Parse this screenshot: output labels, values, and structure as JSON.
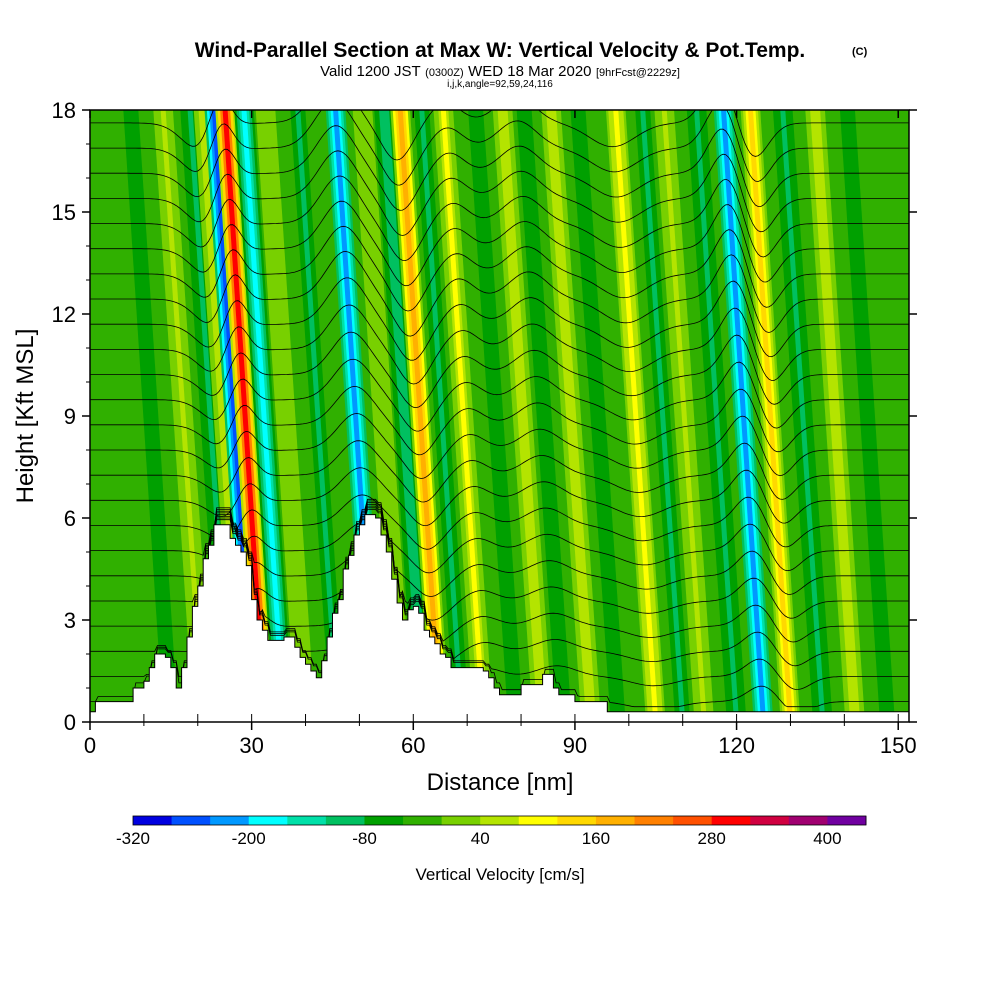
{
  "chart_data": {
    "type": "heatmap",
    "title": "Wind-Parallel Section at Max W: Vertical Velocity & Pot.Temp.",
    "title_mark": "(C)",
    "subtitle_parts": [
      "Valid 1200 JST",
      "(0300Z)",
      "WED 18 Mar 2020",
      "[9hrFcst@2229z]"
    ],
    "subtitle2": "i,j,k,angle=92,59,24,116",
    "xlabel": "Distance [nm]",
    "ylabel": "Height [Kft MSL]",
    "xlim": [
      0,
      152
    ],
    "ylim": [
      0,
      18
    ],
    "x_ticks": [
      0,
      30,
      60,
      90,
      120,
      150
    ],
    "y_ticks": [
      0,
      3,
      6,
      9,
      12,
      15,
      18
    ],
    "colorbar": {
      "title": "Vertical Velocity [cm/s]",
      "labels": [
        "-320",
        "-200",
        "-80",
        "40",
        "160",
        "280",
        "400"
      ],
      "colors": [
        "#0000e0",
        "#0050ff",
        "#0098ff",
        "#00ffff",
        "#00e0a8",
        "#00c060",
        "#00a000",
        "#30b000",
        "#78d000",
        "#b4e400",
        "#ffff00",
        "#ffd800",
        "#ffb000",
        "#ff8000",
        "#ff5000",
        "#ff0000",
        "#d00040",
        "#a00070",
        "#7000a0"
      ]
    },
    "band_thresholds": [
      -340,
      -280,
      -220,
      -160,
      -100,
      -40,
      -5,
      20,
      60,
      100,
      140,
      180,
      220,
      260,
      300,
      340,
      380,
      420
    ],
    "background_w": 8,
    "columns": [
      {
        "x": 15,
        "w": -20
      },
      {
        "x": 21,
        "w": 70
      },
      {
        "x": 26,
        "w": -50
      },
      {
        "x": 28.5,
        "w": 90
      },
      {
        "x": 30.5,
        "w": -330
      },
      {
        "x": 32.5,
        "w": 340
      },
      {
        "x": 36,
        "w": -180
      },
      {
        "x": 40,
        "w": 60
      },
      {
        "x": 46,
        "w": -40
      },
      {
        "x": 53,
        "w": -250
      },
      {
        "x": 58,
        "w": 60
      },
      {
        "x": 62,
        "w": -60
      },
      {
        "x": 65,
        "w": 200
      },
      {
        "x": 69,
        "w": -40
      },
      {
        "x": 73,
        "w": 110
      },
      {
        "x": 79,
        "w": -30
      },
      {
        "x": 84,
        "w": 80
      },
      {
        "x": 88,
        "w": -30
      },
      {
        "x": 93,
        "w": 100
      },
      {
        "x": 98,
        "w": -20
      },
      {
        "x": 105,
        "w": 120
      },
      {
        "x": 110,
        "w": -40
      },
      {
        "x": 114,
        "w": 70
      },
      {
        "x": 120,
        "w": -50
      },
      {
        "x": 125,
        "w": -220
      },
      {
        "x": 130,
        "w": 180
      },
      {
        "x": 136,
        "w": -50
      },
      {
        "x": 142,
        "w": 90
      },
      {
        "x": 148,
        "w": -30
      }
    ],
    "terrain_kft": [
      [
        0,
        0.3
      ],
      [
        1,
        0.6
      ],
      [
        7,
        0.6
      ],
      [
        8,
        1.0
      ],
      [
        10,
        1.2
      ],
      [
        11,
        1.6
      ],
      [
        12,
        2.0
      ],
      [
        14,
        1.9
      ],
      [
        15,
        1.6
      ],
      [
        16,
        1.0
      ],
      [
        17,
        1.6
      ],
      [
        18,
        2.5
      ],
      [
        19,
        3.4
      ],
      [
        20,
        4.0
      ],
      [
        21,
        4.8
      ],
      [
        22,
        5.2
      ],
      [
        23,
        5.8
      ],
      [
        25,
        5.8
      ],
      [
        26,
        5.4
      ],
      [
        27,
        5.2
      ],
      [
        28,
        5.0
      ],
      [
        29,
        4.6
      ],
      [
        30,
        3.6
      ],
      [
        31,
        3.0
      ],
      [
        32,
        2.7
      ],
      [
        33,
        2.4
      ],
      [
        35,
        2.4
      ],
      [
        36,
        2.5
      ],
      [
        38,
        2.2
      ],
      [
        39,
        1.9
      ],
      [
        40,
        1.7
      ],
      [
        41,
        1.5
      ],
      [
        42,
        1.3
      ],
      [
        43,
        1.8
      ],
      [
        44,
        2.5
      ],
      [
        45,
        3.2
      ],
      [
        46,
        3.6
      ],
      [
        47,
        4.5
      ],
      [
        48,
        4.9
      ],
      [
        49,
        5.5
      ],
      [
        50,
        5.8
      ],
      [
        51,
        6.1
      ],
      [
        53,
        6.0
      ],
      [
        54,
        5.5
      ],
      [
        55,
        5.0
      ],
      [
        56,
        4.2
      ],
      [
        57,
        3.5
      ],
      [
        58,
        3.0
      ],
      [
        59,
        3.3
      ],
      [
        60,
        3.4
      ],
      [
        61,
        3.2
      ],
      [
        62,
        2.7
      ],
      [
        63,
        2.5
      ],
      [
        64,
        2.3
      ],
      [
        65,
        2.0
      ],
      [
        66,
        1.9
      ],
      [
        67,
        1.6
      ],
      [
        73,
        1.5
      ],
      [
        74,
        1.3
      ],
      [
        75,
        1.0
      ],
      [
        76,
        0.8
      ],
      [
        79,
        0.8
      ],
      [
        80,
        1.1
      ],
      [
        84,
        1.4
      ],
      [
        86,
        1.0
      ],
      [
        87,
        0.8
      ],
      [
        90,
        0.6
      ],
      [
        95,
        0.6
      ],
      [
        96,
        0.3
      ],
      [
        152,
        0.3
      ]
    ],
    "isentropes": {
      "count": 24,
      "base_kft": 0.6,
      "spacing_kft": 0.74,
      "label_font": "tiny"
    },
    "isentrope_waves": [
      {
        "x": 29,
        "amp": -0.9,
        "width": 5
      },
      {
        "x": 32,
        "amp": 1.3,
        "width": 3
      },
      {
        "x": 53,
        "amp": 1.4,
        "width": 5
      },
      {
        "x": 65,
        "amp": -1.1,
        "width": 4
      },
      {
        "x": 74,
        "amp": 0.6,
        "width": 4
      },
      {
        "x": 87,
        "amp": 0.8,
        "width": 5
      },
      {
        "x": 105,
        "amp": -0.7,
        "width": 6
      },
      {
        "x": 125,
        "amp": 1.4,
        "width": 4
      },
      {
        "x": 131,
        "amp": -1.1,
        "width": 4
      }
    ]
  }
}
